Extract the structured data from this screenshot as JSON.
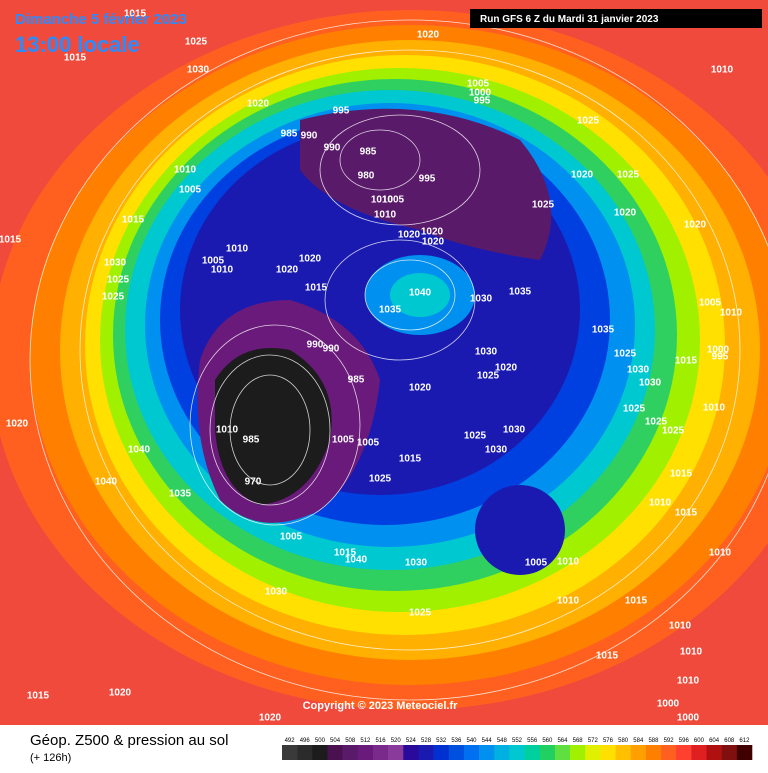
{
  "header": {
    "date": "Dimanche 5 février 2023",
    "time": "13:00 locale",
    "run": "Run GFS 6 Z du Mardi 31 janvier 2023"
  },
  "copyright": "Copyright © 2023 Meteociel.fr",
  "footer": {
    "title": "Géop. Z500 & pression au sol",
    "lead": "(+ 126h)"
  },
  "scale": {
    "ticks": [
      492,
      496,
      500,
      504,
      508,
      512,
      516,
      520,
      524,
      528,
      532,
      536,
      540,
      544,
      548,
      552,
      556,
      560,
      564,
      568,
      572,
      576,
      580,
      584,
      588,
      592,
      596,
      600,
      604,
      608,
      612
    ],
    "colors": [
      "#3a3a3a",
      "#2b2b2b",
      "#1c1c1c",
      "#4a1050",
      "#5a1a6a",
      "#6a1a7a",
      "#7a2a8a",
      "#8a3a9a",
      "#2a0a9a",
      "#1a1ab0",
      "#0030d0",
      "#0050e0",
      "#0070f0",
      "#0090f0",
      "#00b0e0",
      "#00c8d0",
      "#00d0a0",
      "#20d060",
      "#60e040",
      "#a0f000",
      "#e0f000",
      "#ffe000",
      "#ffc000",
      "#ffa000",
      "#ff8000",
      "#ff6020",
      "#ff4030",
      "#e02020",
      "#b01010",
      "#801010",
      "#400000"
    ]
  },
  "isobars": [
    "1015",
    "1025",
    "1015",
    "1030",
    "1020",
    "1010",
    "1020",
    "1005",
    "1000",
    "995",
    "995",
    "985",
    "990",
    "990",
    "985",
    "980",
    "995",
    "1025",
    "1020",
    "1025",
    "1025",
    "1020",
    "1020",
    "1010",
    "1005",
    "1015",
    "1010",
    "1005",
    "1010",
    "1020",
    "1020",
    "1020",
    "1010",
    "1005",
    "1010",
    "1020",
    "1020",
    "1030",
    "1025",
    "1025",
    "1015",
    "1040",
    "1030",
    "1035",
    "1035",
    "1035",
    "1005",
    "1010",
    "1000",
    "995",
    "990",
    "990",
    "1025",
    "1015",
    "1030",
    "1020",
    "1025",
    "1030",
    "985",
    "1030",
    "1020",
    "1010",
    "1025",
    "1020",
    "1010",
    "985",
    "1025",
    "1030",
    "1025",
    "1025",
    "1005",
    "1005",
    "1040",
    "1030",
    "1015",
    "1015",
    "1040",
    "1025",
    "970",
    "1035",
    "1010",
    "1015",
    "1005",
    "1010",
    "1015",
    "1030",
    "1040",
    "1005",
    "1010",
    "1030",
    "1010",
    "1015",
    "1025",
    "1010",
    "1015",
    "1010",
    "1015",
    "1020",
    "1010",
    "1000",
    "1000",
    "1020",
    "1015"
  ]
}
